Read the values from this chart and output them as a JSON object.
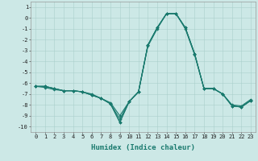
{
  "xlabel": "Humidex (Indice chaleur)",
  "x": [
    0,
    1,
    2,
    3,
    4,
    5,
    6,
    7,
    8,
    9,
    10,
    11,
    12,
    13,
    14,
    15,
    16,
    17,
    18,
    19,
    20,
    21,
    22,
    23
  ],
  "series": [
    [
      -6.3,
      -6.3,
      -6.5,
      -6.7,
      -6.7,
      -6.8,
      -7.1,
      -7.4,
      -7.9,
      -9.3,
      -7.7,
      -6.8,
      -2.5,
      -0.9,
      0.4,
      0.4,
      -0.9,
      -3.3,
      -6.5,
      -6.5,
      -7.0,
      -8.1,
      -8.2,
      -7.6
    ],
    [
      -6.3,
      -6.3,
      -6.5,
      -6.7,
      -6.7,
      -6.8,
      -7.1,
      -7.4,
      -7.9,
      -9.6,
      -7.7,
      -6.8,
      -2.5,
      -0.9,
      0.4,
      0.4,
      -0.9,
      -3.3,
      -6.5,
      -6.5,
      -7.0,
      -8.1,
      -8.2,
      -7.6
    ],
    [
      -6.3,
      -6.3,
      -6.5,
      -6.7,
      -6.7,
      -6.8,
      -7.1,
      -7.4,
      -7.9,
      -9.6,
      -7.7,
      -6.8,
      -2.5,
      -0.9,
      0.4,
      0.4,
      -0.9,
      -3.3,
      -6.5,
      -6.5,
      -7.0,
      -8.1,
      -8.2,
      -7.6
    ],
    [
      -6.3,
      -6.4,
      -6.6,
      -6.7,
      -6.7,
      -6.8,
      -7.0,
      -7.4,
      -7.8,
      -9.0,
      -7.7,
      -6.8,
      -2.6,
      -1.0,
      0.4,
      0.4,
      -1.0,
      -3.4,
      -6.5,
      -6.5,
      -7.0,
      -8.0,
      -8.1,
      -7.5
    ]
  ],
  "line_color": "#1a7a6e",
  "bg_color": "#cce8e6",
  "grid_color": "#aacfcc",
  "ylim": [
    -10.5,
    1.5
  ],
  "yticks": [
    1,
    0,
    -1,
    -2,
    -3,
    -4,
    -5,
    -6,
    -7,
    -8,
    -9,
    -10
  ],
  "xticks": [
    0,
    1,
    2,
    3,
    4,
    5,
    6,
    7,
    8,
    9,
    10,
    11,
    12,
    13,
    14,
    15,
    16,
    17,
    18,
    19,
    20,
    21,
    22,
    23
  ],
  "tick_fontsize": 5.0,
  "xlabel_fontsize": 6.5
}
